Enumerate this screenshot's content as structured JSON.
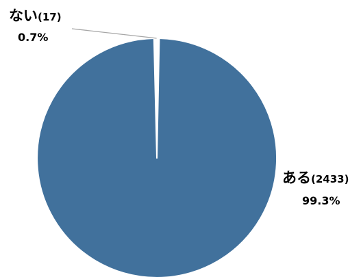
{
  "chart_data": {
    "type": "pie",
    "slices": [
      {
        "name": "ない",
        "count": 17,
        "count_label": "(17)",
        "percent": 0.7,
        "percent_label": "0.7%",
        "color": "#ffffff"
      },
      {
        "name": "ある",
        "count": 2433,
        "count_label": "(2433)",
        "percent": 99.3,
        "percent_label": "99.3%",
        "color": "#41719c"
      }
    ],
    "title": "",
    "legend": "none",
    "start": "top",
    "direction": "clockwise",
    "slice_border_color": "#ffffff",
    "leader_line_color": "#a6a6a6"
  }
}
